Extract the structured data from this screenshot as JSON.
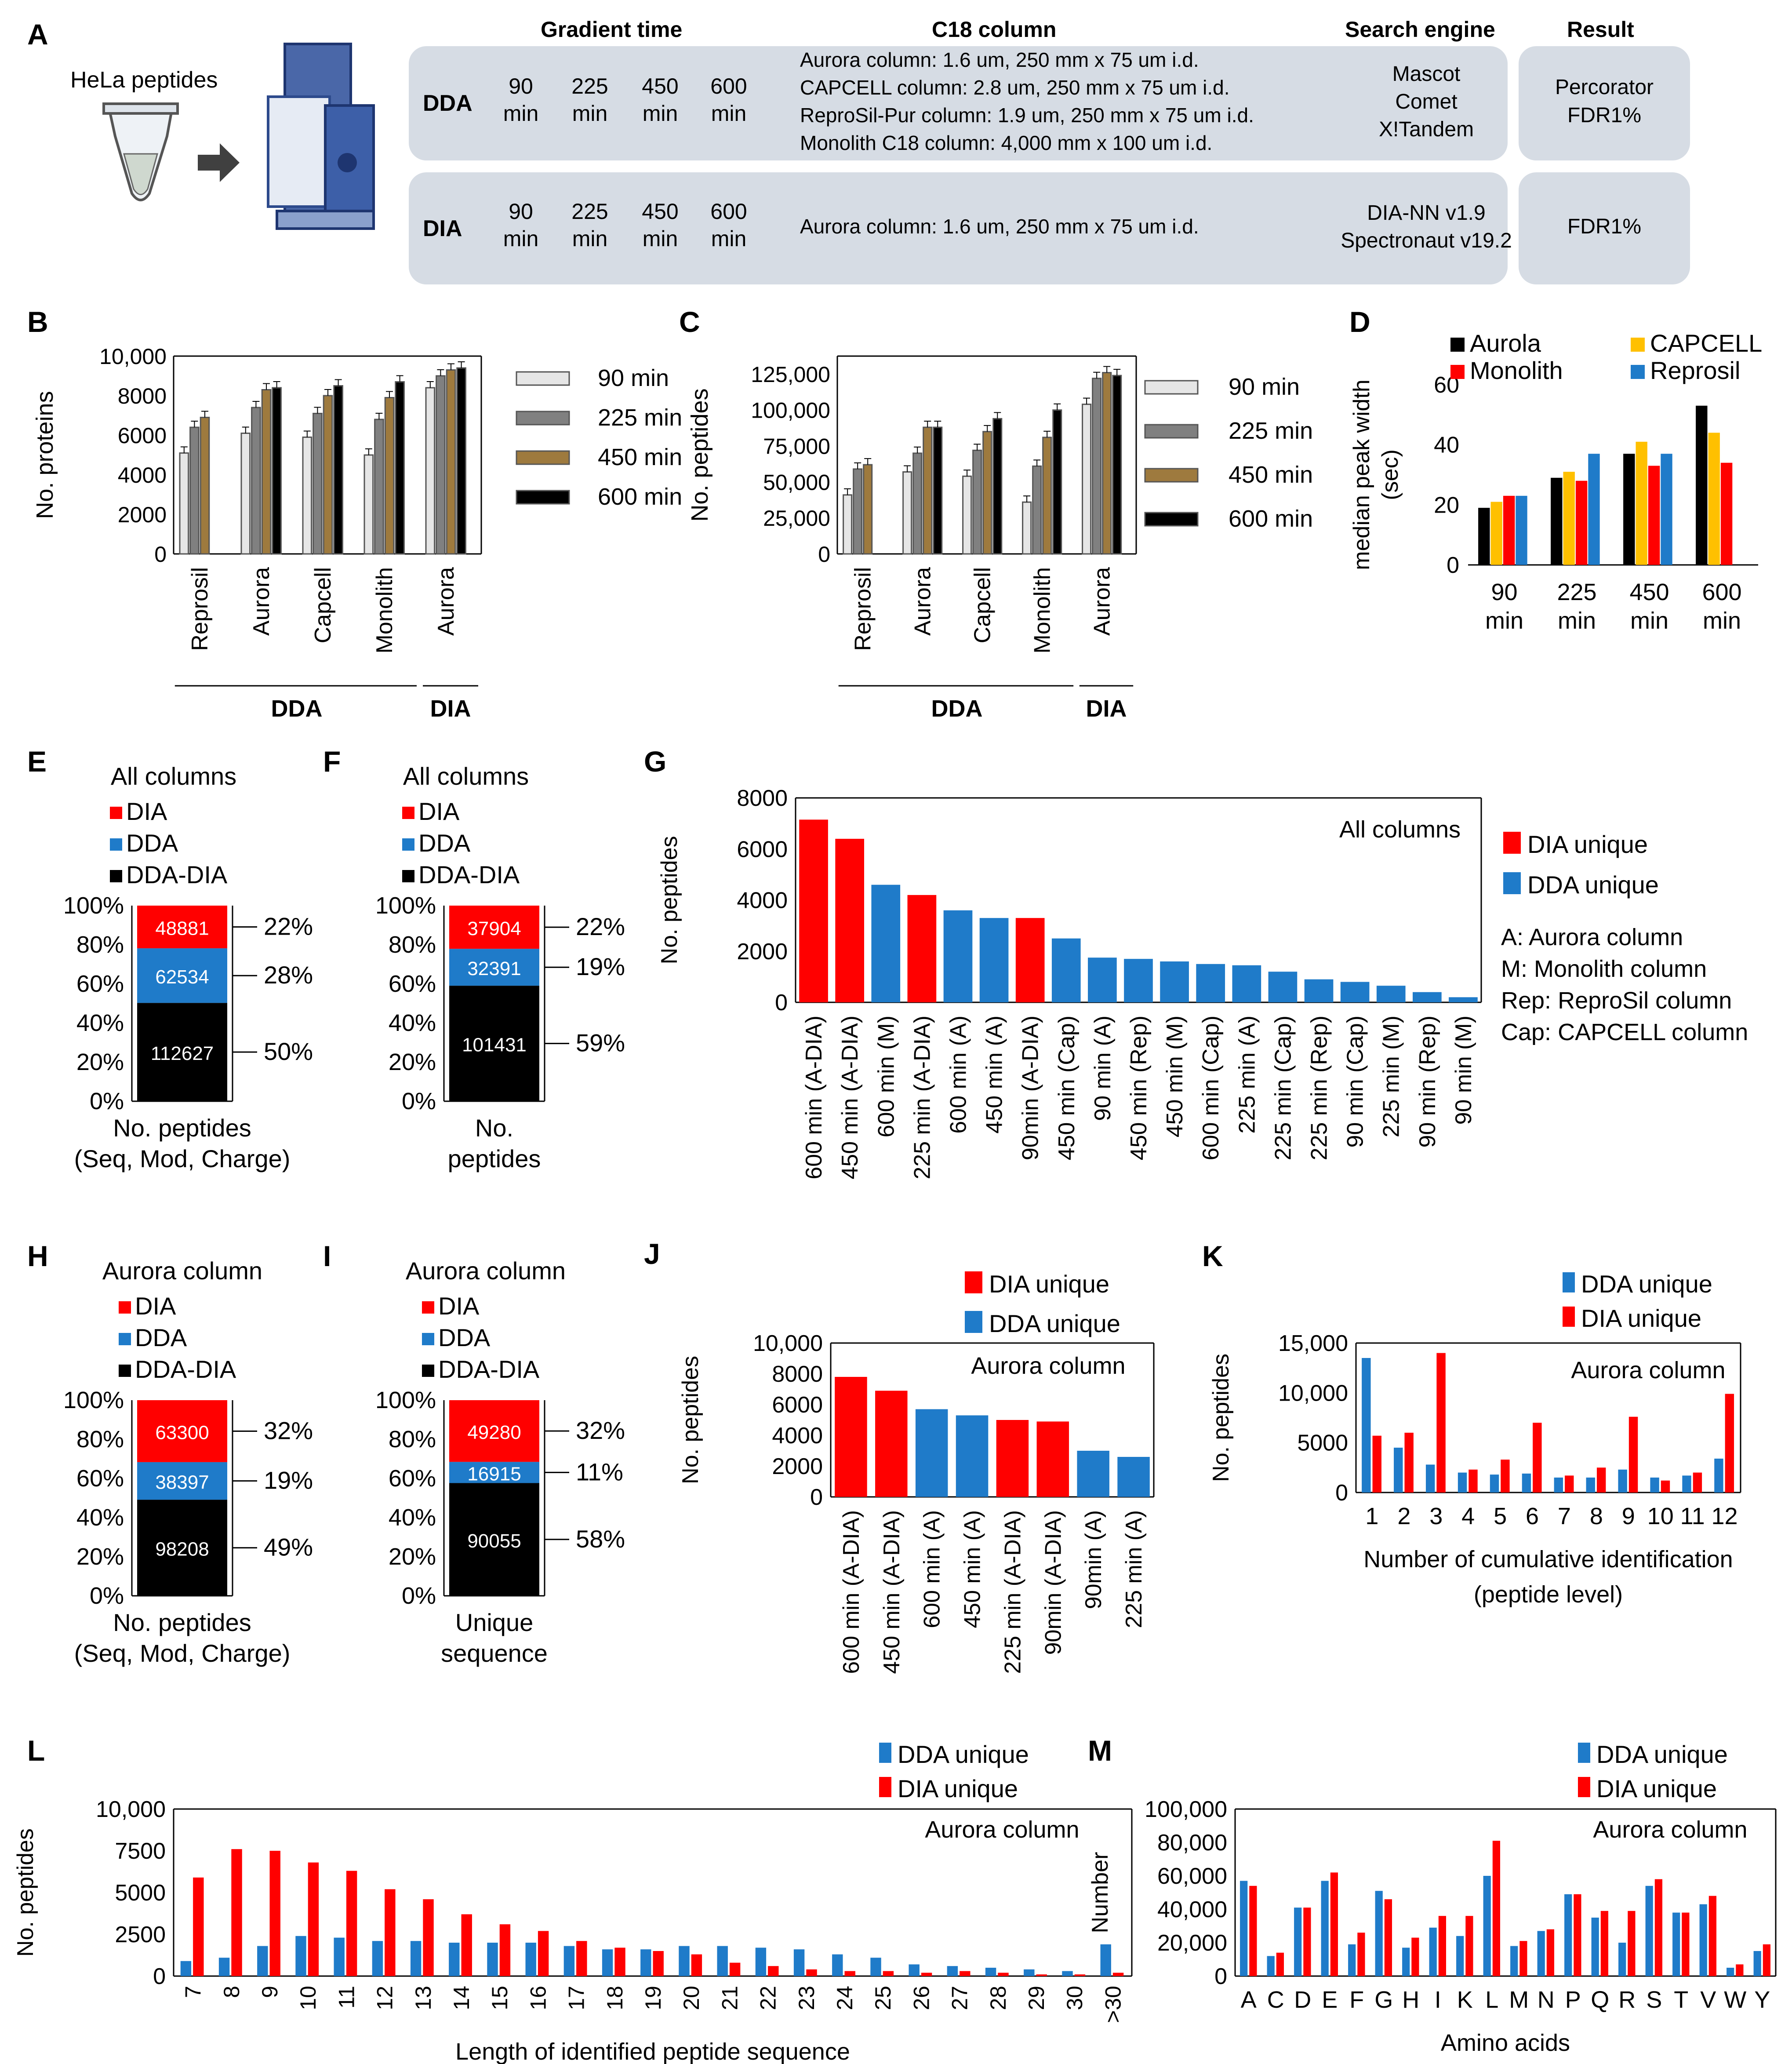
{
  "panelA": {
    "label": "A",
    "sample": "HeLa peptides",
    "headers": {
      "gradient": "Gradient time",
      "column": "C18 column",
      "engine": "Search engine",
      "result": "Result"
    },
    "dda": {
      "mode": "DDA",
      "times": [
        [
          "90",
          "min"
        ],
        [
          "225",
          "min"
        ],
        [
          "450",
          "min"
        ],
        [
          "600",
          "min"
        ]
      ],
      "columns": [
        "Aurora column: 1.6 um, 250 mm x 75 um i.d.",
        "CAPCELL column: 2.8 um, 250 mm x 75 um i.d.",
        "ReproSil-Pur column: 1.9 um, 250 mm x 75 um i.d.",
        "Monolith  C18 column: 4,000 mm x 100 um i.d."
      ],
      "engines": [
        "Mascot",
        "Comet",
        "X!Tandem"
      ],
      "result": [
        "Percorator",
        "FDR1%"
      ]
    },
    "dia": {
      "mode": "DIA",
      "times": [
        [
          "90",
          "min"
        ],
        [
          "225",
          "min"
        ],
        [
          "450",
          "min"
        ],
        [
          "600",
          "min"
        ]
      ],
      "columns": [
        "Aurora column: 1.6 um, 250 mm x 75 um i.d."
      ],
      "engines": [
        "DIA-NN  v1.9",
        "Spectronaut v19.2"
      ],
      "result": [
        "FDR1%"
      ]
    }
  },
  "chart_data": [
    {
      "id": "B",
      "type": "bar",
      "ylabel": "No. proteins",
      "ylim": [
        0,
        10000
      ],
      "yticks": [
        "0",
        "2000",
        "4000",
        "6000",
        "8000",
        "10,000"
      ],
      "groups": [
        "Reprosil",
        "Aurora",
        "Capcell",
        "Monolith",
        "Aurora"
      ],
      "brackets": [
        "DDA",
        "DIA"
      ],
      "legend": [
        "90 min",
        "225 min",
        "450 min",
        "600 min"
      ],
      "colors": [
        "#e6e6e6",
        "#808080",
        "#9e7a3e",
        "#000000"
      ],
      "values": [
        [
          5100,
          6400,
          6900,
          null
        ],
        [
          6100,
          7400,
          8300,
          8400
        ],
        [
          5900,
          7100,
          8000,
          8500
        ],
        [
          5000,
          6800,
          7900,
          8700
        ],
        [
          8400,
          9000,
          9300,
          9400
        ]
      ]
    },
    {
      "id": "C",
      "type": "bar",
      "ylabel": "No. peptides",
      "ylim": [
        0,
        137500
      ],
      "yticks": [
        "0",
        "25,000",
        "50,000",
        "75,000",
        "100,000",
        "125,000"
      ],
      "groups": [
        "Reprosil",
        "Aurora",
        "Capcell",
        "Monolith",
        "Aurora"
      ],
      "brackets": [
        "DDA",
        "DIA"
      ],
      "legend": [
        "90 min",
        "225 min",
        "450 min",
        "600 min"
      ],
      "colors": [
        "#e6e6e6",
        "#808080",
        "#9e7a3e",
        "#000000"
      ],
      "values": [
        [
          41000,
          59000,
          62000,
          null
        ],
        [
          57000,
          70000,
          88000,
          88000
        ],
        [
          54000,
          72000,
          85000,
          94000
        ],
        [
          36000,
          61000,
          81000,
          100000
        ],
        [
          104000,
          122000,
          126000,
          124000
        ]
      ]
    },
    {
      "id": "D",
      "type": "bar",
      "ylabel": "median peak width (sec)",
      "ylim": [
        0,
        60
      ],
      "yticks": [
        "0",
        "20",
        "40",
        "60"
      ],
      "categories": [
        [
          "90",
          "min"
        ],
        [
          "225",
          "min"
        ],
        [
          "450",
          "min"
        ],
        [
          "600",
          "min"
        ]
      ],
      "series": [
        {
          "name": "Aurola",
          "color": "#000000",
          "values": [
            19,
            29,
            37,
            53
          ]
        },
        {
          "name": "CAPCELL",
          "color": "#ffc000",
          "values": [
            21,
            31,
            41,
            44
          ]
        },
        {
          "name": "Monolith",
          "color": "#ff0000",
          "values": [
            23,
            28,
            33,
            34
          ]
        },
        {
          "name": "Reprosil",
          "color": "#1f7bc9",
          "values": [
            23,
            37,
            37,
            null
          ]
        }
      ]
    },
    {
      "id": "E",
      "type": "bar",
      "stacked": true,
      "title": "All columns",
      "legend": [
        "DIA",
        "DDA",
        "DDA-DIA"
      ],
      "yticks": [
        "0%",
        "20%",
        "40%",
        "60%",
        "80%",
        "100%"
      ],
      "segments": [
        {
          "value": 112627,
          "pct": "50%"
        },
        {
          "value": 62534,
          "pct": "28%"
        },
        {
          "value": 48881,
          "pct": "22%"
        }
      ],
      "xlabel": [
        "No. peptides",
        "(Seq, Mod, Charge)"
      ]
    },
    {
      "id": "F",
      "type": "bar",
      "stacked": true,
      "title": "All columns",
      "legend": [
        "DIA",
        "DDA",
        "DDA-DIA"
      ],
      "yticks": [
        "0%",
        "20%",
        "40%",
        "60%",
        "80%",
        "100%"
      ],
      "segments": [
        {
          "value": 101431,
          "pct": "59%"
        },
        {
          "value": 32391,
          "pct": "19%"
        },
        {
          "value": 37904,
          "pct": "22%"
        }
      ],
      "xlabel": [
        "No.",
        "peptides"
      ]
    },
    {
      "id": "G",
      "type": "bar",
      "title": "All columns",
      "ylabel": "No. peptides",
      "ylim": [
        0,
        8000
      ],
      "yticks": [
        "0",
        "2000",
        "4000",
        "6000",
        "8000"
      ],
      "legend": [
        "DIA unique",
        "DDA unique"
      ],
      "notes": [
        "A: Aurora column",
        "M: Monolith  column",
        "Rep: ReproSil column",
        "Cap: CAPCELL column"
      ],
      "categories": [
        "600 min (A-DIA)",
        "450 min (A-DIA)",
        "600 min (M)",
        "225 min (A-DIA)",
        "600 min (A)",
        "450 min (A)",
        "90min (A-DIA)",
        "450 min (Cap)",
        "90 min (A)",
        "450 min (Rep)",
        "450 min (M)",
        "600 min (Cap)",
        "225 min (A)",
        "225 min (Cap)",
        "225 min (Rep)",
        "90 min (Cap)",
        "225 min (M)",
        "90 min (Rep)",
        "90 min (M)"
      ],
      "values": [
        7150,
        6400,
        4600,
        4200,
        3600,
        3300,
        3300,
        2500,
        1750,
        1700,
        1600,
        1500,
        1450,
        1200,
        900,
        800,
        650,
        400,
        200
      ],
      "kind": [
        "DIA",
        "DIA",
        "DDA",
        "DIA",
        "DDA",
        "DDA",
        "DIA",
        "DDA",
        "DDA",
        "DDA",
        "DDA",
        "DDA",
        "DDA",
        "DDA",
        "DDA",
        "DDA",
        "DDA",
        "DDA",
        "DDA"
      ]
    },
    {
      "id": "H",
      "type": "bar",
      "stacked": true,
      "title": "Aurora column",
      "legend": [
        "DIA",
        "DDA",
        "DDA-DIA"
      ],
      "yticks": [
        "0%",
        "20%",
        "40%",
        "60%",
        "80%",
        "100%"
      ],
      "segments": [
        {
          "value": 98208,
          "pct": "49%"
        },
        {
          "value": 38397,
          "pct": "19%"
        },
        {
          "value": 63300,
          "pct": "32%"
        }
      ],
      "xlabel": [
        "No. peptides",
        "(Seq, Mod, Charge)"
      ]
    },
    {
      "id": "I",
      "type": "bar",
      "stacked": true,
      "title": "Aurora column",
      "legend": [
        "DIA",
        "DDA",
        "DDA-DIA"
      ],
      "yticks": [
        "0%",
        "20%",
        "40%",
        "60%",
        "80%",
        "100%"
      ],
      "segments": [
        {
          "value": 90055,
          "pct": "58%"
        },
        {
          "value": 16915,
          "pct": "11%"
        },
        {
          "value": 49280,
          "pct": "32%"
        }
      ],
      "xlabel": [
        "Unique",
        "sequence"
      ]
    },
    {
      "id": "J",
      "type": "bar",
      "title": "Aurora column",
      "ylabel": "No. peptides",
      "ylim": [
        0,
        10000
      ],
      "yticks": [
        "0",
        "2000",
        "4000",
        "6000",
        "8000",
        "10,000"
      ],
      "legend": [
        "DIA unique",
        "DDA unique"
      ],
      "categories": [
        "600 min (A-DIA)",
        "450 min (A-DIA)",
        "600 min (A)",
        "450 min (A)",
        "225 min (A-DIA)",
        "90min (A-DIA)",
        "90min (A)",
        "225 min (A)"
      ],
      "values": [
        7800,
        6900,
        5700,
        5300,
        5000,
        4900,
        3000,
        2600
      ],
      "kind": [
        "DIA",
        "DIA",
        "DDA",
        "DDA",
        "DIA",
        "DIA",
        "DDA",
        "DDA"
      ]
    },
    {
      "id": "K",
      "type": "bar",
      "title": "Aurora column",
      "ylabel": "No. peptides",
      "ylim": [
        0,
        15000
      ],
      "yticks": [
        "0",
        "5000",
        "10,000",
        "15,000"
      ],
      "xlabel": [
        "Number of cumulative  identification",
        "(peptide level)"
      ],
      "categories": [
        "1",
        "2",
        "3",
        "4",
        "5",
        "6",
        "7",
        "8",
        "9",
        "10",
        "11",
        "12"
      ],
      "series": [
        {
          "name": "DDA unique",
          "color": "#1f7bc9",
          "values": [
            13500,
            4500,
            2800,
            2000,
            1800,
            1900,
            1500,
            1500,
            2300,
            1500,
            1700,
            3400
          ]
        },
        {
          "name": "DIA unique",
          "color": "#ff0000",
          "values": [
            5700,
            6000,
            14000,
            2300,
            3300,
            7000,
            1700,
            2500,
            7600,
            1200,
            2000,
            9900
          ]
        }
      ]
    },
    {
      "id": "L",
      "type": "bar",
      "title": "Aurora column",
      "ylabel": "No. peptides",
      "ylim": [
        0,
        10000
      ],
      "yticks": [
        "0",
        "2500",
        "5000",
        "7500",
        "10,000"
      ],
      "xlabel": "Length  of identified peptide sequence",
      "categories": [
        "7",
        "8",
        "9",
        "10",
        "11",
        "12",
        "13",
        "14",
        "15",
        "16",
        "17",
        "18",
        "19",
        "20",
        "21",
        "22",
        "23",
        "24",
        "25",
        "26",
        "27",
        "28",
        "29",
        "30",
        ">30"
      ],
      "series": [
        {
          "name": "DDA unique",
          "color": "#1f7bc9",
          "values": [
            900,
            1100,
            1800,
            2400,
            2300,
            2100,
            2100,
            2000,
            2000,
            2000,
            1800,
            1600,
            1600,
            1800,
            1800,
            1700,
            1600,
            1300,
            1100,
            700,
            600,
            500,
            400,
            300,
            1900
          ]
        },
        {
          "name": "DIA unique",
          "color": "#ff0000",
          "values": [
            5900,
            7600,
            7500,
            6800,
            6300,
            5200,
            4600,
            3700,
            3100,
            2700,
            2100,
            1700,
            1500,
            1300,
            800,
            600,
            400,
            300,
            300,
            200,
            300,
            200,
            100,
            100,
            200
          ]
        }
      ]
    },
    {
      "id": "M",
      "type": "bar",
      "title": "Aurora column",
      "ylabel": "Number",
      "ylim": [
        0,
        100000
      ],
      "yticks": [
        "0",
        "20,000",
        "40,000",
        "60,000",
        "80,000",
        "100,000"
      ],
      "xlabel": "Amino acids",
      "categories": [
        "A",
        "C",
        "D",
        "E",
        "F",
        "G",
        "H",
        "I",
        "K",
        "L",
        "M",
        "N",
        "P",
        "Q",
        "R",
        "S",
        "T",
        "V",
        "W",
        "Y"
      ],
      "series": [
        {
          "name": "DDA unique",
          "color": "#1f7bc9",
          "values": [
            57000,
            12000,
            41000,
            57000,
            19000,
            51000,
            17000,
            29000,
            24000,
            60000,
            18000,
            27000,
            49000,
            35000,
            20000,
            54000,
            38000,
            43000,
            5000,
            15000
          ]
        },
        {
          "name": "DIA unique",
          "color": "#ff0000",
          "values": [
            54000,
            14000,
            41000,
            62000,
            26000,
            46000,
            23000,
            36000,
            36000,
            81000,
            21000,
            28000,
            49000,
            39000,
            39000,
            58000,
            38000,
            48000,
            7000,
            19000
          ]
        }
      ]
    }
  ]
}
